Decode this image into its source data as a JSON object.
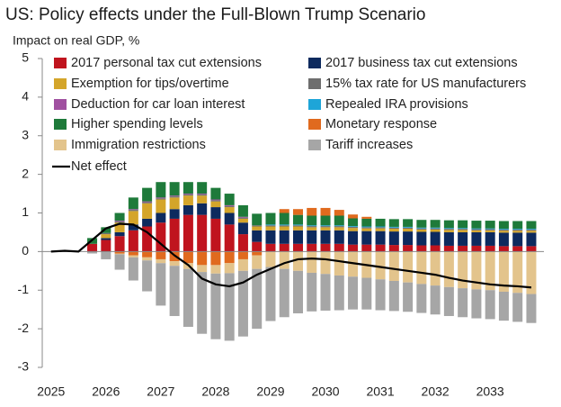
{
  "chart_data": {
    "type": "bar",
    "stacked": true,
    "title": "US: Policy effects under the Full-Blown Trump Scenario",
    "y_label": "Impact on real GDP, %",
    "x": [
      2025,
      2025.25,
      2025.5,
      2025.75,
      2026,
      2026.25,
      2026.5,
      2026.75,
      2027,
      2027.25,
      2027.5,
      2027.75,
      2028,
      2028.25,
      2028.5,
      2028.75,
      2029,
      2029.25,
      2029.5,
      2029.75,
      2030,
      2030.25,
      2030.5,
      2030.75,
      2031,
      2031.25,
      2031.5,
      2031.75,
      2032,
      2032.25,
      2032.5,
      2032.75,
      2033,
      2033.25,
      2033.5,
      2033.75
    ],
    "xlim": [
      2024.84,
      2033.98
    ],
    "xticks": [
      2025,
      2026,
      2027,
      2028,
      2029,
      2030,
      2031,
      2032,
      2033
    ],
    "ylim": [
      -3,
      5
    ],
    "yticks": [
      -3,
      -2,
      -1,
      0,
      1,
      2,
      3,
      4,
      5
    ],
    "series": [
      {
        "name": "2017 personal tax cut extensions",
        "color": "#c0141e",
        "values": [
          null,
          null,
          null,
          0.2,
          0.3,
          0.4,
          0.55,
          0.65,
          0.75,
          0.85,
          0.95,
          0.95,
          0.85,
          0.7,
          0.45,
          0.25,
          0.2,
          0.2,
          0.2,
          0.2,
          0.2,
          0.2,
          0.18,
          0.18,
          0.18,
          0.17,
          0.17,
          0.16,
          0.16,
          0.15,
          0.15,
          0.15,
          0.15,
          0.14,
          0.14,
          0.14
        ]
      },
      {
        "name": "2017 business tax cut extensions",
        "color": "#0d2a5e",
        "values": [
          null,
          null,
          null,
          0,
          0.05,
          0.1,
          0.15,
          0.2,
          0.25,
          0.25,
          0.25,
          0.3,
          0.3,
          0.3,
          0.3,
          0.3,
          0.35,
          0.35,
          0.35,
          0.35,
          0.35,
          0.35,
          0.35,
          0.35,
          0.35,
          0.35,
          0.35,
          0.35,
          0.35,
          0.35,
          0.35,
          0.35,
          0.35,
          0.35,
          0.35,
          0.35
        ]
      },
      {
        "name": "Exemption for tips/overtime",
        "color": "#d4a52a",
        "values": [
          null,
          null,
          null,
          0,
          0.1,
          0.25,
          0.35,
          0.4,
          0.35,
          0.3,
          0.25,
          0.2,
          0.15,
          0.15,
          0.1,
          0.1,
          0.1,
          0.1,
          0.1,
          0.08,
          0.08,
          0.08,
          0.08,
          0.07,
          0.07,
          0.07,
          0.07,
          0.06,
          0.06,
          0.06,
          0.06,
          0.05,
          0.05,
          0.05,
          0.05,
          0.05
        ]
      },
      {
        "name": "15% tax rate for US manufacturers",
        "color": "#6e6e6e",
        "values": [
          null,
          null,
          null,
          0,
          0.03,
          0.03,
          0.03,
          0.03,
          0.03,
          0.03,
          0.03,
          0.03,
          0.03,
          0.03,
          0.03,
          0.03,
          0.03,
          0.03,
          0.03,
          0.03,
          0.03,
          0.03,
          0.03,
          0.03,
          0.03,
          0.03,
          0.03,
          0.03,
          0.03,
          0.03,
          0.03,
          0.03,
          0.03,
          0.03,
          0.03,
          0.03
        ]
      },
      {
        "name": "Deduction for car loan interest",
        "color": "#a050a0",
        "values": [
          null,
          null,
          null,
          0,
          0,
          0.02,
          0.02,
          0.02,
          0.02,
          0.02,
          0.02,
          0.02,
          0.02,
          0.02,
          0.02,
          0,
          0,
          0,
          0,
          0,
          0,
          0,
          0,
          0,
          0,
          0,
          0,
          0,
          0,
          0,
          0,
          0,
          0,
          0,
          0,
          0
        ]
      },
      {
        "name": "Repealed IRA provisions",
        "color": "#1ea5d8",
        "values": [
          null,
          null,
          null,
          0,
          0,
          0,
          0,
          0,
          0,
          0,
          0,
          0,
          0,
          0,
          0,
          0,
          0.02,
          0.02,
          0.02,
          0.02,
          0.02,
          0.02,
          0.02,
          0.02,
          0.02,
          0.02,
          0.02,
          0.02,
          0.02,
          0.02,
          0.02,
          0.02,
          0.02,
          0.02,
          0.02,
          0.02
        ]
      },
      {
        "name": "Higher spending levels",
        "color": "#1e7a3a",
        "values": [
          null,
          null,
          null,
          0.15,
          0.15,
          0.2,
          0.3,
          0.35,
          0.4,
          0.35,
          0.3,
          0.3,
          0.3,
          0.3,
          0.3,
          0.3,
          0.3,
          0.3,
          0.25,
          0.25,
          0.25,
          0.25,
          0.2,
          0.2,
          0.2,
          0.2,
          0.2,
          0.2,
          0.2,
          0.2,
          0.2,
          0.2,
          0.2,
          0.2,
          0.2,
          0.2
        ]
      },
      {
        "name": "Monetary response",
        "color": "#e06a1e",
        "values": [
          null,
          null,
          null,
          0,
          0,
          -0.05,
          -0.1,
          -0.15,
          -0.2,
          -0.25,
          -0.3,
          -0.35,
          -0.35,
          -0.3,
          -0.2,
          -0.1,
          0,
          0.1,
          0.15,
          0.2,
          0.2,
          0.15,
          0.1,
          0.05,
          0,
          0,
          0,
          0,
          0,
          0,
          0,
          0,
          0,
          0,
          0,
          0
        ]
      },
      {
        "name": "Immigration restrictions",
        "color": "#e3c48c",
        "values": [
          null,
          null,
          null,
          0,
          0,
          -0.02,
          -0.05,
          -0.08,
          -0.1,
          -0.12,
          -0.15,
          -0.18,
          -0.22,
          -0.26,
          -0.3,
          -0.35,
          -0.4,
          -0.45,
          -0.5,
          -0.55,
          -0.58,
          -0.62,
          -0.65,
          -0.68,
          -0.72,
          -0.76,
          -0.8,
          -0.84,
          -0.88,
          -0.92,
          -0.95,
          -0.98,
          -1.0,
          -1.04,
          -1.07,
          -1.1
        ]
      },
      {
        "name": "Tariff increases",
        "color": "#a6a6a6",
        "values": [
          null,
          null,
          null,
          -0.05,
          -0.2,
          -0.4,
          -0.6,
          -0.8,
          -1.1,
          -1.3,
          -1.5,
          -1.6,
          -1.7,
          -1.75,
          -1.7,
          -1.55,
          -1.4,
          -1.25,
          -1.1,
          -1.0,
          -0.95,
          -0.9,
          -0.85,
          -0.82,
          -0.8,
          -0.78,
          -0.76,
          -0.75,
          -0.75,
          -0.75,
          -0.75,
          -0.75,
          -0.75,
          -0.75,
          -0.75,
          -0.75
        ]
      },
      {
        "name": "Net effect",
        "type": "line",
        "color": "#000000",
        "values": [
          0,
          0.02,
          0,
          0.3,
          0.6,
          0.72,
          0.7,
          0.5,
          0.2,
          -0.1,
          -0.35,
          -0.7,
          -0.85,
          -0.9,
          -0.8,
          -0.6,
          -0.45,
          -0.3,
          -0.2,
          -0.18,
          -0.2,
          -0.25,
          -0.3,
          -0.35,
          -0.4,
          -0.45,
          -0.5,
          -0.55,
          -0.6,
          -0.68,
          -0.75,
          -0.8,
          -0.85,
          -0.88,
          -0.9,
          -0.93
        ]
      }
    ]
  }
}
